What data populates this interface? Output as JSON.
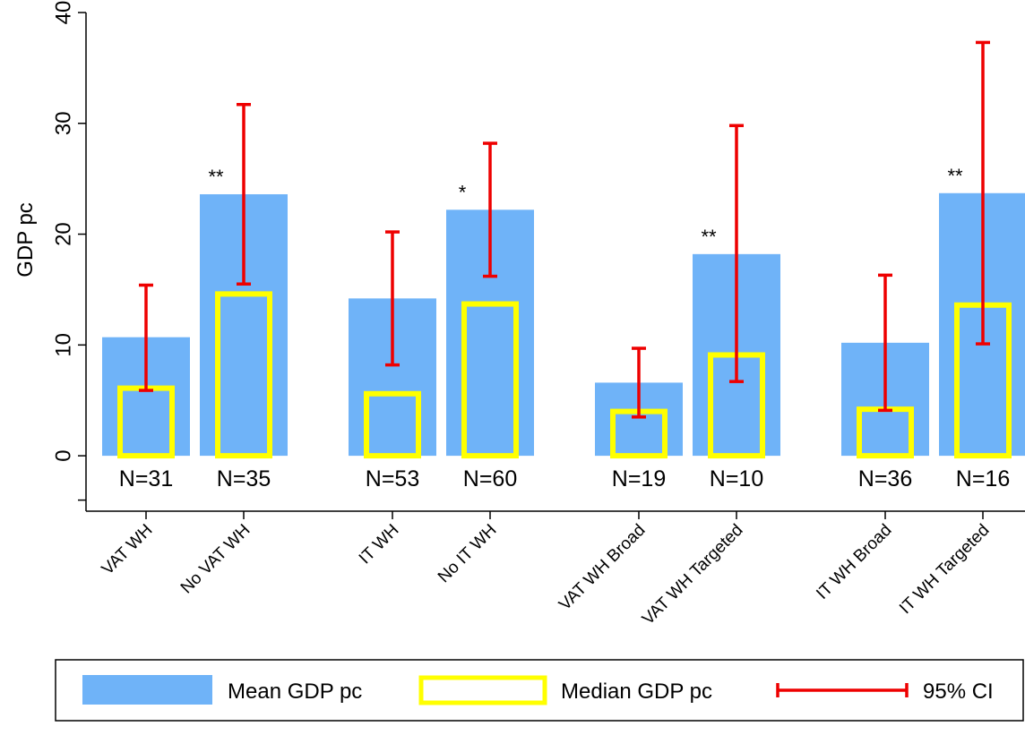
{
  "chart_data": {
    "type": "bar",
    "ylabel": "GDP pc",
    "ylim": [
      -5,
      40
    ],
    "yticks": [
      0,
      10,
      20,
      30,
      40
    ],
    "grid": false,
    "categories": [
      "VAT WH",
      "No VAT WH",
      "IT WH",
      "No IT WH",
      "VAT WH Broad",
      "VAT WH Targeted",
      "IT WH Broad",
      "IT WH Targeted"
    ],
    "n_labels": [
      "N=31",
      "N=35",
      "N=53",
      "N=60",
      "N=19",
      "N=10",
      "N=36",
      "N=16"
    ],
    "significance": [
      "",
      "**",
      "",
      "*",
      "",
      "**",
      "",
      "**"
    ],
    "series": [
      {
        "name": "Mean GDP pc",
        "values": [
          10.7,
          23.6,
          14.2,
          22.2,
          6.6,
          18.2,
          10.2,
          23.7
        ]
      },
      {
        "name": "Median GDP pc",
        "values": [
          6.1,
          14.6,
          5.6,
          13.7,
          4.0,
          9.1,
          4.2,
          13.6
        ]
      },
      {
        "name": "95% CI",
        "lower": [
          5.9,
          15.5,
          8.2,
          16.2,
          3.5,
          6.7,
          4.1,
          10.1
        ],
        "upper": [
          15.4,
          31.7,
          20.2,
          28.2,
          9.7,
          29.8,
          16.3,
          37.3
        ]
      }
    ],
    "colors": {
      "mean": "#6fb3f8",
      "median": "#ffff00",
      "ci": "#ee0000"
    },
    "legend": {
      "position": "bottom"
    }
  }
}
